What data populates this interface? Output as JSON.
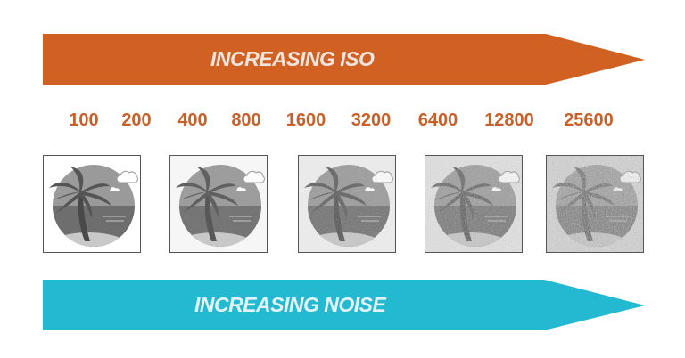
{
  "top_arrow": {
    "label": "INCREASING ISO",
    "color": "#d06123"
  },
  "iso_values": [
    "100",
    "200",
    "400",
    "800",
    "1600",
    "3200",
    "6400",
    "12800",
    "25600"
  ],
  "iso_color": "#c8602a",
  "sample_images": [
    {
      "icon": "palm-beach-icon",
      "noise_level": 0.0
    },
    {
      "icon": "palm-beach-icon",
      "noise_level": 0.15
    },
    {
      "icon": "palm-beach-icon",
      "noise_level": 0.35
    },
    {
      "icon": "palm-beach-icon",
      "noise_level": 0.6
    },
    {
      "icon": "palm-beach-icon",
      "noise_level": 0.9
    }
  ],
  "bottom_arrow": {
    "label": "INCREASING NOISE",
    "color": "#23b9d1"
  }
}
